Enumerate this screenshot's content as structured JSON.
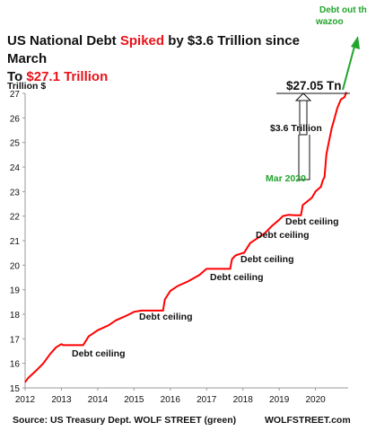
{
  "title": {
    "part1": "US National Debt ",
    "part2": "Spiked",
    "part3": " by $3.6 Trillion",
    "part4": " since March",
    "line2a": "To ",
    "line2b": "$27.1 Trillion"
  },
  "footer": {
    "source": "Source: US Treasury Dept. WOLF STREET (green)",
    "brand": "WOLFSTREET.com"
  },
  "colors": {
    "line": "#ff0000",
    "annotation_green": "#21a52c",
    "text": "#111111"
  },
  "chart_data": {
    "type": "line",
    "title": "US National Debt Spiked by $3.6 Trillion since March To $27.1 Trillion",
    "ylabel": "Trillion $",
    "xlabel": "",
    "xlim": [
      2012.0,
      2020.9
    ],
    "ylim": [
      15,
      27
    ],
    "x_ticks": [
      "2012",
      "2013",
      "2014",
      "2015",
      "2016",
      "2017",
      "2018",
      "2019",
      "2020"
    ],
    "y_ticks": [
      15,
      16,
      17,
      18,
      19,
      20,
      21,
      22,
      23,
      24,
      25,
      26,
      27
    ],
    "grid": false,
    "series": [
      {
        "x": [
          2012.0,
          2012.08,
          2012.3,
          2012.5,
          2012.7,
          2012.85,
          2013.0,
          2013.05,
          2013.6,
          2013.75,
          2013.85,
          2014.0,
          2014.3,
          2014.5,
          2014.8,
          2015.0,
          2015.2,
          2015.45,
          2015.8,
          2015.85,
          2016.0,
          2016.2,
          2016.5,
          2016.8,
          2017.0,
          2017.05,
          2017.65,
          2017.7,
          2017.8,
          2018.0,
          2018.03,
          2018.2,
          2018.4,
          2018.6,
          2018.8,
          2019.0,
          2019.1,
          2019.25,
          2019.45,
          2019.6,
          2019.65,
          2019.9,
          2020.0,
          2020.15,
          2020.2,
          2020.25,
          2020.3,
          2020.35,
          2020.45,
          2020.5,
          2020.6,
          2020.7,
          2020.8,
          2020.85
        ],
        "y": [
          15.23,
          15.4,
          15.7,
          16.0,
          16.4,
          16.65,
          16.78,
          16.74,
          16.74,
          17.1,
          17.2,
          17.35,
          17.55,
          17.75,
          17.95,
          18.1,
          18.15,
          18.15,
          18.15,
          18.6,
          18.95,
          19.15,
          19.35,
          19.6,
          19.85,
          19.85,
          19.85,
          20.25,
          20.4,
          20.5,
          20.5,
          20.9,
          21.1,
          21.3,
          21.6,
          21.85,
          22.0,
          22.05,
          22.03,
          22.03,
          22.45,
          22.75,
          23.0,
          23.2,
          23.45,
          23.6,
          24.5,
          24.9,
          25.6,
          25.85,
          26.4,
          26.75,
          26.85,
          27.05
        ]
      }
    ],
    "annotations": [
      {
        "text": "Debt ceiling"
      },
      {
        "text": "Debt ceiling"
      },
      {
        "text": "Debt ceiling"
      },
      {
        "text": "Debt ceiling"
      },
      {
        "text": "Debt ceiling"
      },
      {
        "text": "Debt ceiling"
      }
    ],
    "callouts": {
      "value_label": "$27.05 Tn",
      "spike_label": "$3.6 Trillion",
      "march_label": "Mar 2020",
      "wazoo_label": "Debt out the wazoo"
    }
  }
}
